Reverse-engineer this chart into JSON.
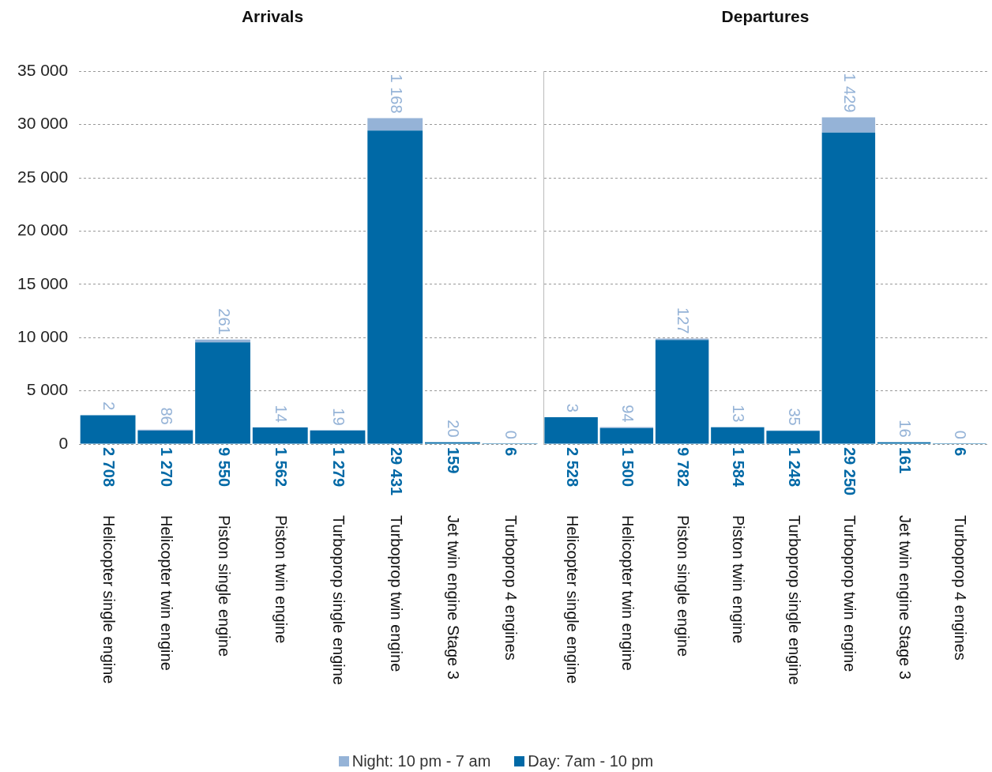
{
  "chart_data": [
    {
      "type": "bar",
      "title": "Arrivals",
      "stacked": true,
      "categories": [
        "Helicopter single engine",
        "Helicopter twin engine",
        "Piston single engine",
        "Piston twin engine",
        "Turboprop single engine",
        "Turboprop twin engine",
        "Jet twin engine Stage 3",
        "Turboprop 4 engines"
      ],
      "series": [
        {
          "name": "Day: 7am - 10 pm",
          "color": "#0069a6",
          "values": [
            2708,
            1270,
            9550,
            1562,
            1279,
            29431,
            159,
            6
          ],
          "value_labels": [
            "2 708",
            "1 270",
            "9 550",
            "1 562",
            "1 279",
            "29 431",
            "159",
            "6"
          ]
        },
        {
          "name": "Night: 10 pm - 7 am",
          "color": "#95b3d7",
          "values": [
            2,
            86,
            261,
            14,
            19,
            1168,
            20,
            0
          ],
          "value_labels": [
            "2",
            "86",
            "261",
            "14",
            "19",
            "1 168",
            "20",
            "0"
          ]
        }
      ],
      "ylim": [
        0,
        35000
      ],
      "yticks": [
        0,
        {
          "value": 5000,
          "label": "5 000"
        },
        {
          "value": 10000,
          "label": "10 000"
        },
        {
          "value": 15000,
          "label": "15 000"
        },
        {
          "value": 20000,
          "label": "20 000"
        },
        {
          "value": 25000,
          "label": "25 000"
        },
        {
          "value": 30000,
          "label": "30 000"
        },
        {
          "value": 35000,
          "label": "35 000"
        }
      ],
      "grid": "y",
      "legend": "bottom"
    },
    {
      "type": "bar",
      "title": "Departures",
      "stacked": true,
      "categories": [
        "Helicopter single engine",
        "Helicopter twin engine",
        "Piston single engine",
        "Piston twin engine",
        "Turboprop single engine",
        "Turboprop twin engine",
        "Jet twin engine Stage 3",
        "Turboprop 4 engines"
      ],
      "series": [
        {
          "color": "#0069a6",
          "values": [
            2528,
            1500,
            9782,
            1584,
            1248,
            29250,
            161,
            6
          ],
          "value_labels": [
            "2 528",
            "1 500",
            "9 782",
            "1 584",
            "1 248",
            "29 250",
            "161",
            "6"
          ]
        },
        {
          "color": "#95b3d7",
          "values": [
            3,
            94,
            127,
            13,
            35,
            1429,
            16,
            0
          ],
          "value_labels": [
            "3",
            "94",
            "127",
            "13",
            "35",
            "1 429",
            "16",
            "0"
          ]
        }
      ],
      "ylim": [
        0,
        35000
      ],
      "yticks": [
        0,
        5000,
        10000,
        15000,
        20000,
        25000,
        30000,
        35000
      ],
      "grid": "y",
      "tick_labels": "x"
    }
  ]
}
